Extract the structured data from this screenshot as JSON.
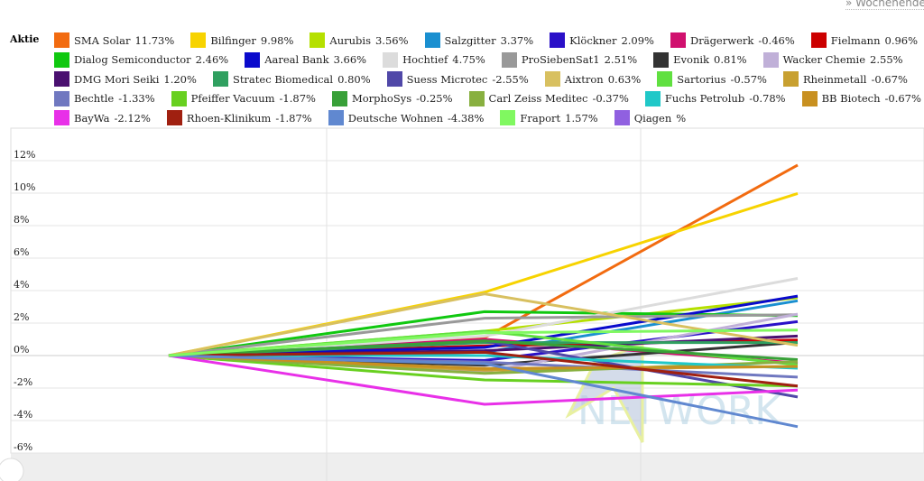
{
  "top_link": "» Wochenende",
  "legend_title": "Aktie",
  "chart_data": {
    "type": "line",
    "title": "",
    "xlabel": "",
    "ylabel": "",
    "ylim": [
      -6,
      14
    ],
    "yticks": [
      "12%",
      "10%",
      "8%",
      "6%",
      "4%",
      "2%",
      "0%",
      "-2%",
      "-4%",
      "-6%"
    ],
    "ytick_values": [
      12,
      10,
      8,
      6,
      4,
      2,
      0,
      -2,
      -4,
      -6
    ],
    "grid": true,
    "legend_placement": "top",
    "watermark": "BÖRSE GLOBAL NETWORK",
    "legend_rows": [
      [
        "SMA Solar",
        "Bilfinger",
        "Aurubis",
        "Salzgitter",
        "Klöckner",
        "Drägerwerk",
        "Fielmann"
      ],
      [
        "Dialog Semiconductor",
        "Aareal Bank",
        "Hochtief",
        "ProSiebenSat1",
        "Evonik",
        "Wacker Chemie"
      ],
      [
        "DMG Mori Seiki",
        "Stratec Biomedical",
        "Suess Microtec",
        "Aixtron",
        "Sartorius",
        "Rheinmetall"
      ],
      [
        "Bechtle",
        "Pfeiffer Vacuum",
        "MorphoSys",
        "Carl Zeiss Meditec",
        "Fuchs Petrolub",
        "BB Biotech"
      ],
      [
        "BayWa",
        "Rhoen-Klinikum",
        "Deutsche Wohnen",
        "Fraport",
        "Qiagen"
      ]
    ],
    "series": [
      {
        "name": "SMA Solar",
        "label": "11.73%",
        "color": "#f26b10",
        "values": [
          0,
          1.1,
          11.73
        ]
      },
      {
        "name": "Bilfinger",
        "label": "9.98%",
        "color": "#f7d300",
        "values": [
          0,
          3.9,
          9.98
        ]
      },
      {
        "name": "Aurubis",
        "label": "3.56%",
        "color": "#b5e000",
        "values": [
          0,
          1.5,
          3.56
        ]
      },
      {
        "name": "Salzgitter",
        "label": "3.37%",
        "color": "#1a8fd0",
        "values": [
          0,
          0.2,
          3.37
        ]
      },
      {
        "name": "Klöckner",
        "label": "2.09%",
        "color": "#2a10c8",
        "values": [
          0,
          -0.3,
          2.09
        ]
      },
      {
        "name": "Drägerwerk",
        "label": "-0.46%",
        "color": "#d0106e",
        "values": [
          0,
          1.0,
          -0.46
        ]
      },
      {
        "name": "Fielmann",
        "label": "0.96%",
        "color": "#cc0000",
        "values": [
          0,
          0.6,
          0.96
        ]
      },
      {
        "name": "Dialog Semiconductor",
        "label": "2.46%",
        "color": "#10c810",
        "values": [
          0,
          2.7,
          2.46
        ]
      },
      {
        "name": "Aareal Bank",
        "label": "3.66%",
        "color": "#0a0acc",
        "values": [
          0,
          0.5,
          3.66
        ]
      },
      {
        "name": "Hochtief",
        "label": "4.75%",
        "color": "#dcdcdc",
        "values": [
          0,
          1.2,
          4.75
        ]
      },
      {
        "name": "ProSiebenSat1",
        "label": "2.51%",
        "color": "#999999",
        "values": [
          0,
          2.3,
          2.51
        ]
      },
      {
        "name": "Evonik",
        "label": "0.81%",
        "color": "#333333",
        "values": [
          0,
          -0.6,
          0.81
        ]
      },
      {
        "name": "Wacker Chemie",
        "label": "2.55%",
        "color": "#c0b0d8",
        "values": [
          0,
          -1.0,
          2.55
        ]
      },
      {
        "name": "DMG Mori Seiki",
        "label": "1.20%",
        "color": "#4a1070",
        "values": [
          0,
          0.3,
          1.2
        ]
      },
      {
        "name": "Stratec Biomedical",
        "label": "0.80%",
        "color": "#30a060",
        "values": [
          0,
          0.8,
          0.8
        ]
      },
      {
        "name": "Suess Microtec",
        "label": "-2.55%",
        "color": "#5048a8",
        "values": [
          0,
          0.9,
          -2.55
        ]
      },
      {
        "name": "Aixtron",
        "label": "0.63%",
        "color": "#d8c060",
        "values": [
          0,
          3.8,
          0.63
        ]
      },
      {
        "name": "Sartorius",
        "label": "-0.57%",
        "color": "#60e040",
        "values": [
          0,
          1.5,
          -0.57
        ]
      },
      {
        "name": "Rheinmetall",
        "label": "-0.67%",
        "color": "#c8a030",
        "values": [
          0,
          -0.9,
          -0.67
        ]
      },
      {
        "name": "Bechtle",
        "label": "-1.33%",
        "color": "#7078c0",
        "values": [
          0,
          -0.4,
          -1.33
        ]
      },
      {
        "name": "Pfeiffer Vacuum",
        "label": "-1.87%",
        "color": "#68d020",
        "values": [
          0,
          -1.5,
          -1.87
        ]
      },
      {
        "name": "MorphoSys",
        "label": "-0.25%",
        "color": "#38a038",
        "values": [
          0,
          0.9,
          -0.25
        ]
      },
      {
        "name": "Carl Zeiss Meditec",
        "label": "-0.37%",
        "color": "#88b040",
        "values": [
          0,
          -1.1,
          -0.37
        ]
      },
      {
        "name": "Fuchs Petrolub",
        "label": "-0.78%",
        "color": "#20c8c8",
        "values": [
          0,
          0.0,
          -0.78
        ]
      },
      {
        "name": "BB Biotech",
        "label": "-0.67%",
        "color": "#c89020",
        "values": [
          0,
          -0.8,
          -0.67
        ]
      },
      {
        "name": "BayWa",
        "label": "-2.12%",
        "color": "#e830e8",
        "values": [
          0,
          -3.0,
          -2.12
        ]
      },
      {
        "name": "Rhoen-Klinikum",
        "label": "-1.87%",
        "color": "#a02010",
        "values": [
          0,
          0.2,
          -1.87
        ]
      },
      {
        "name": "Deutsche Wohnen",
        "label": "-4.38%",
        "color": "#6088d0",
        "values": [
          0,
          -0.5,
          -4.38
        ]
      },
      {
        "name": "Fraport",
        "label": "1.57%",
        "color": "#80f860",
        "values": [
          0,
          1.4,
          1.57
        ]
      },
      {
        "name": "Qiagen",
        "label": "%",
        "color": "#9060e0",
        "values": []
      }
    ]
  }
}
